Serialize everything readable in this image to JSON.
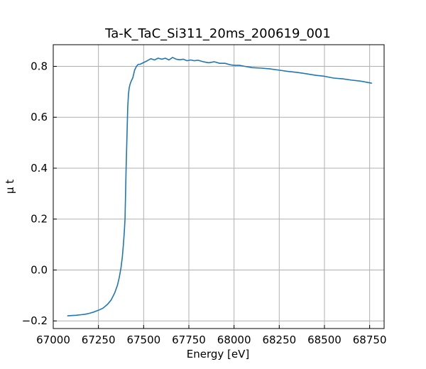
{
  "chart_data": {
    "type": "line",
    "title": "Ta-K_TaC_Si311_20ms_200619_001",
    "xlabel": "Energy [eV]",
    "ylabel": "μ t",
    "xlim": [
      67000,
      68830
    ],
    "ylim": [
      -0.23,
      0.885
    ],
    "xticks": [
      67000,
      67250,
      67500,
      67750,
      68000,
      68250,
      68500,
      68750
    ],
    "xtick_labels": [
      "67000",
      "67250",
      "67500",
      "67750",
      "68000",
      "68250",
      "68500",
      "68750"
    ],
    "yticks": [
      -0.2,
      0.0,
      0.2,
      0.4,
      0.6,
      0.8
    ],
    "ytick_labels": [
      "−0.2",
      "0.0",
      "0.2",
      "0.4",
      "0.6",
      "0.8"
    ],
    "grid": true,
    "series": [
      {
        "color": "#1f77b4",
        "x": [
          67080,
          67100,
          67125,
          67150,
          67175,
          67200,
          67225,
          67250,
          67275,
          67300,
          67320,
          67340,
          67355,
          67365,
          67375,
          67382,
          67388,
          67393,
          67397,
          67400,
          67403,
          67406,
          67409,
          67412,
          67416,
          67420,
          67425,
          67430,
          67440,
          67450,
          67460,
          67470,
          67480,
          67500,
          67520,
          67540,
          67560,
          67580,
          67600,
          67620,
          67640,
          67660,
          67680,
          67700,
          67720,
          67740,
          67760,
          67780,
          67800,
          67830,
          67860,
          67890,
          67920,
          67950,
          67980,
          68000,
          68030,
          68060,
          68100,
          68150,
          68200,
          68250,
          68300,
          68350,
          68400,
          68450,
          68500,
          68550,
          68600,
          68650,
          68700,
          68760
        ],
        "y": [
          -0.18,
          -0.179,
          -0.178,
          -0.176,
          -0.174,
          -0.17,
          -0.165,
          -0.158,
          -0.15,
          -0.135,
          -0.118,
          -0.09,
          -0.06,
          -0.03,
          0.01,
          0.05,
          0.1,
          0.15,
          0.2,
          0.3,
          0.4,
          0.48,
          0.56,
          0.64,
          0.69,
          0.715,
          0.73,
          0.74,
          0.755,
          0.785,
          0.8,
          0.808,
          0.808,
          0.815,
          0.822,
          0.83,
          0.825,
          0.832,
          0.828,
          0.832,
          0.825,
          0.835,
          0.828,
          0.826,
          0.828,
          0.822,
          0.825,
          0.822,
          0.824,
          0.818,
          0.814,
          0.818,
          0.812,
          0.812,
          0.806,
          0.804,
          0.804,
          0.8,
          0.795,
          0.793,
          0.79,
          0.785,
          0.78,
          0.776,
          0.771,
          0.765,
          0.761,
          0.754,
          0.751,
          0.746,
          0.742,
          0.734
        ]
      }
    ]
  }
}
